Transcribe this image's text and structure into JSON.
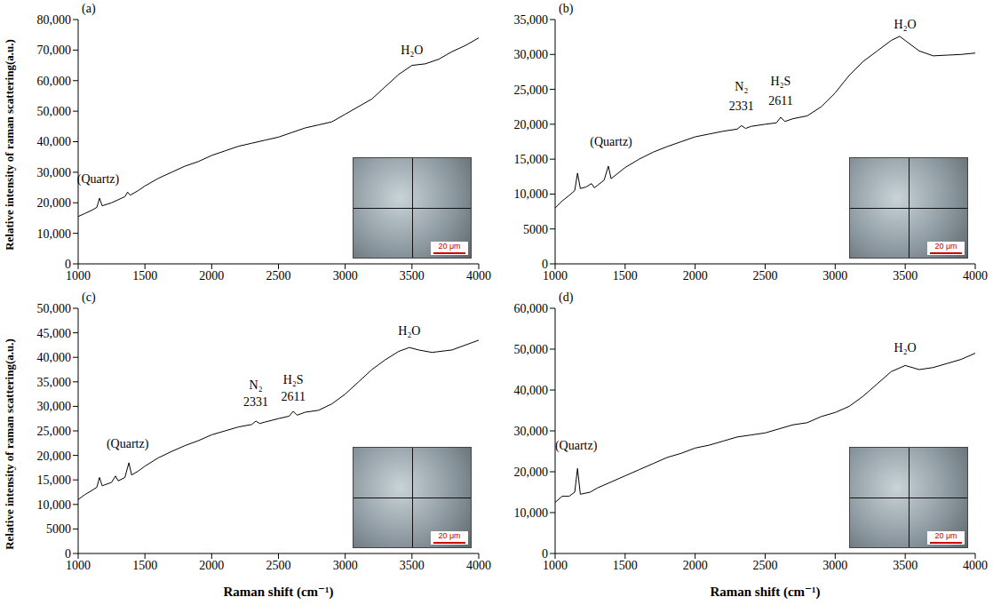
{
  "chart_data": [
    {
      "type": "line",
      "label": "(a)",
      "y_label": "Relative intensity of raman scattering(a.u.)",
      "color": "#000000",
      "x": [
        1000,
        1050,
        1100,
        1140,
        1160,
        1180,
        1250,
        1300,
        1350,
        1370,
        1390,
        1450,
        1500,
        1600,
        1700,
        1800,
        1900,
        2000,
        2100,
        2200,
        2300,
        2400,
        2500,
        2600,
        2700,
        2800,
        2900,
        3000,
        3100,
        3200,
        3300,
        3400,
        3500,
        3600,
        3700,
        3800,
        3900,
        4000
      ],
      "values": [
        15500,
        16500,
        17500,
        18500,
        21500,
        19000,
        20000,
        21000,
        22000,
        23500,
        22500,
        24000,
        25500,
        28000,
        30000,
        32000,
        33500,
        35500,
        37000,
        38500,
        39500,
        40500,
        41500,
        43000,
        44500,
        45500,
        46500,
        49000,
        51500,
        54000,
        58000,
        62000,
        65000,
        65500,
        67000,
        69500,
        71500,
        74000
      ],
      "xlim": [
        1000,
        4000
      ],
      "xticks": [
        1000,
        1500,
        2000,
        2500,
        3000,
        3500,
        4000
      ],
      "ylim": [
        0,
        80000
      ],
      "yticks": [
        0,
        {
          "value": 10000,
          "label": "10,000"
        },
        {
          "value": 20000,
          "label": "20,000"
        },
        {
          "value": 30000,
          "label": "30,000"
        },
        {
          "value": 40000,
          "label": "40,000"
        },
        {
          "value": 50000,
          "label": "50,000"
        },
        {
          "value": 60000,
          "label": "60,000"
        },
        {
          "value": 70000,
          "label": "70,000"
        },
        {
          "value": 80000,
          "label": "80,000"
        }
      ],
      "annotations": [
        {
          "text": "(Quartz)",
          "x": 1150,
          "y": 28000
        },
        {
          "text": "H₂O",
          "x": 3500,
          "y": 70000
        }
      ],
      "inset": {
        "scale_bar": "20 μm"
      }
    },
    {
      "type": "line",
      "label": "(b)",
      "color": "#000000",
      "x": [
        1000,
        1050,
        1100,
        1140,
        1160,
        1180,
        1220,
        1260,
        1280,
        1300,
        1350,
        1380,
        1400,
        1450,
        1500,
        1600,
        1700,
        1800,
        1900,
        2000,
        2100,
        2200,
        2300,
        2331,
        2360,
        2400,
        2500,
        2580,
        2611,
        2640,
        2700,
        2800,
        2900,
        3000,
        3100,
        3200,
        3300,
        3400,
        3460,
        3500,
        3600,
        3700,
        3800,
        3900,
        4000
      ],
      "values": [
        8000,
        9000,
        9800,
        10500,
        13000,
        10800,
        11000,
        11500,
        10900,
        11200,
        12000,
        14000,
        12200,
        13000,
        13800,
        15000,
        16000,
        16800,
        17500,
        18200,
        18600,
        19000,
        19300,
        19800,
        19400,
        19700,
        20000,
        20200,
        21000,
        20400,
        20800,
        21200,
        22500,
        24500,
        27000,
        29000,
        30500,
        32000,
        32600,
        32000,
        30500,
        29800,
        29900,
        30000,
        30200
      ],
      "xlim": [
        1000,
        4000
      ],
      "xticks": [
        1000,
        1500,
        2000,
        2500,
        3000,
        3500,
        4000
      ],
      "ylim": [
        0,
        35000
      ],
      "yticks": [
        0,
        5000,
        {
          "value": 10000,
          "label": "10,000"
        },
        {
          "value": 15000,
          "label": "15,000"
        },
        {
          "value": 20000,
          "label": "20,000"
        },
        {
          "value": 25000,
          "label": "25,000"
        },
        {
          "value": 30000,
          "label": "30,000"
        },
        {
          "value": 35000,
          "label": "35,000"
        }
      ],
      "annotations": [
        {
          "text": "(Quartz)",
          "x": 1400,
          "y": 17500
        },
        {
          "text": "N₂",
          "x": 2331,
          "y": 25500
        },
        {
          "text": "2331",
          "x": 2331,
          "y": 22700
        },
        {
          "text": "H₂S",
          "x": 2611,
          "y": 26200
        },
        {
          "text": "2611",
          "x": 2611,
          "y": 23400
        },
        {
          "text": "H₂O",
          "x": 3500,
          "y": 34300
        }
      ],
      "inset": {
        "scale_bar": "20 μm"
      }
    },
    {
      "type": "line",
      "label": "(c)",
      "y_label": "Relative intensity of raman scattering(a.u.)",
      "x_label": "Raman shift (cm⁻¹)",
      "color": "#000000",
      "x": [
        1000,
        1050,
        1100,
        1140,
        1160,
        1180,
        1250,
        1280,
        1300,
        1350,
        1380,
        1400,
        1450,
        1500,
        1600,
        1700,
        1800,
        1900,
        2000,
        2100,
        2200,
        2300,
        2331,
        2360,
        2400,
        2500,
        2580,
        2611,
        2640,
        2700,
        2800,
        2900,
        3000,
        3100,
        3200,
        3300,
        3400,
        3480,
        3550,
        3650,
        3800,
        3900,
        4000
      ],
      "values": [
        11000,
        12000,
        12800,
        13500,
        15500,
        13800,
        14500,
        15800,
        14800,
        15500,
        18500,
        16000,
        16800,
        17800,
        19500,
        20800,
        22000,
        23000,
        24200,
        25000,
        25800,
        26300,
        27000,
        26500,
        26800,
        27500,
        28000,
        29000,
        28200,
        28800,
        29200,
        30500,
        32500,
        35000,
        37500,
        39500,
        41200,
        42000,
        41500,
        41000,
        41500,
        42500,
        43500
      ],
      "xlim": [
        1000,
        4000
      ],
      "xticks": [
        1000,
        1500,
        2000,
        2500,
        3000,
        3500,
        4000
      ],
      "ylim": [
        0,
        50000
      ],
      "yticks": [
        0,
        5000,
        {
          "value": 10000,
          "label": "10,000"
        },
        {
          "value": 15000,
          "label": "15,000"
        },
        {
          "value": 20000,
          "label": "20,000"
        },
        {
          "value": 25000,
          "label": "25,000"
        },
        {
          "value": 30000,
          "label": "30,000"
        },
        {
          "value": 35000,
          "label": "35,000"
        },
        {
          "value": 40000,
          "label": "40,000"
        },
        {
          "value": 45000,
          "label": "45,000"
        },
        {
          "value": 50000,
          "label": "50,000"
        }
      ],
      "annotations": [
        {
          "text": "(Quartz)",
          "x": 1370,
          "y": 22500
        },
        {
          "text": "N₂",
          "x": 2331,
          "y": 34500
        },
        {
          "text": "2331",
          "x": 2331,
          "y": 31000
        },
        {
          "text": "H₂S",
          "x": 2611,
          "y": 35500
        },
        {
          "text": "2611",
          "x": 2611,
          "y": 32000
        },
        {
          "text": "H₂O",
          "x": 3480,
          "y": 45500
        }
      ],
      "inset": {
        "scale_bar": "20 μm"
      }
    },
    {
      "type": "line",
      "label": "(d)",
      "x_label": "Raman shift (cm⁻¹)",
      "color": "#000000",
      "x": [
        1000,
        1050,
        1100,
        1140,
        1160,
        1180,
        1250,
        1300,
        1400,
        1500,
        1600,
        1700,
        1800,
        1900,
        2000,
        2100,
        2200,
        2300,
        2400,
        2500,
        2600,
        2700,
        2800,
        2900,
        3000,
        3100,
        3200,
        3300,
        3400,
        3500,
        3600,
        3700,
        3800,
        3900,
        4000
      ],
      "values": [
        12500,
        14000,
        14000,
        15000,
        20800,
        14500,
        15000,
        16000,
        17500,
        19000,
        20500,
        22000,
        23500,
        24500,
        25800,
        26500,
        27500,
        28500,
        29000,
        29500,
        30500,
        31500,
        32000,
        33500,
        34500,
        36000,
        38500,
        41500,
        44500,
        46000,
        45000,
        45500,
        46500,
        47500,
        49000
      ],
      "xlim": [
        1000,
        4000
      ],
      "xticks": [
        1000,
        1500,
        2000,
        2500,
        3000,
        3500,
        4000
      ],
      "ylim": [
        0,
        60000
      ],
      "yticks": [
        0,
        {
          "value": 10000,
          "label": "10,000"
        },
        {
          "value": 20000,
          "label": "20,000"
        },
        {
          "value": 30000,
          "label": "30,000"
        },
        {
          "value": 40000,
          "label": "40,000"
        },
        {
          "value": 50000,
          "label": "50,000"
        },
        {
          "value": 60000,
          "label": "60,000"
        }
      ],
      "annotations": [
        {
          "text": "(Quartz)",
          "x": 1150,
          "y": 26500
        },
        {
          "text": "H₂O",
          "x": 3500,
          "y": 50500
        }
      ],
      "inset": {
        "scale_bar": "20 μm"
      }
    }
  ]
}
